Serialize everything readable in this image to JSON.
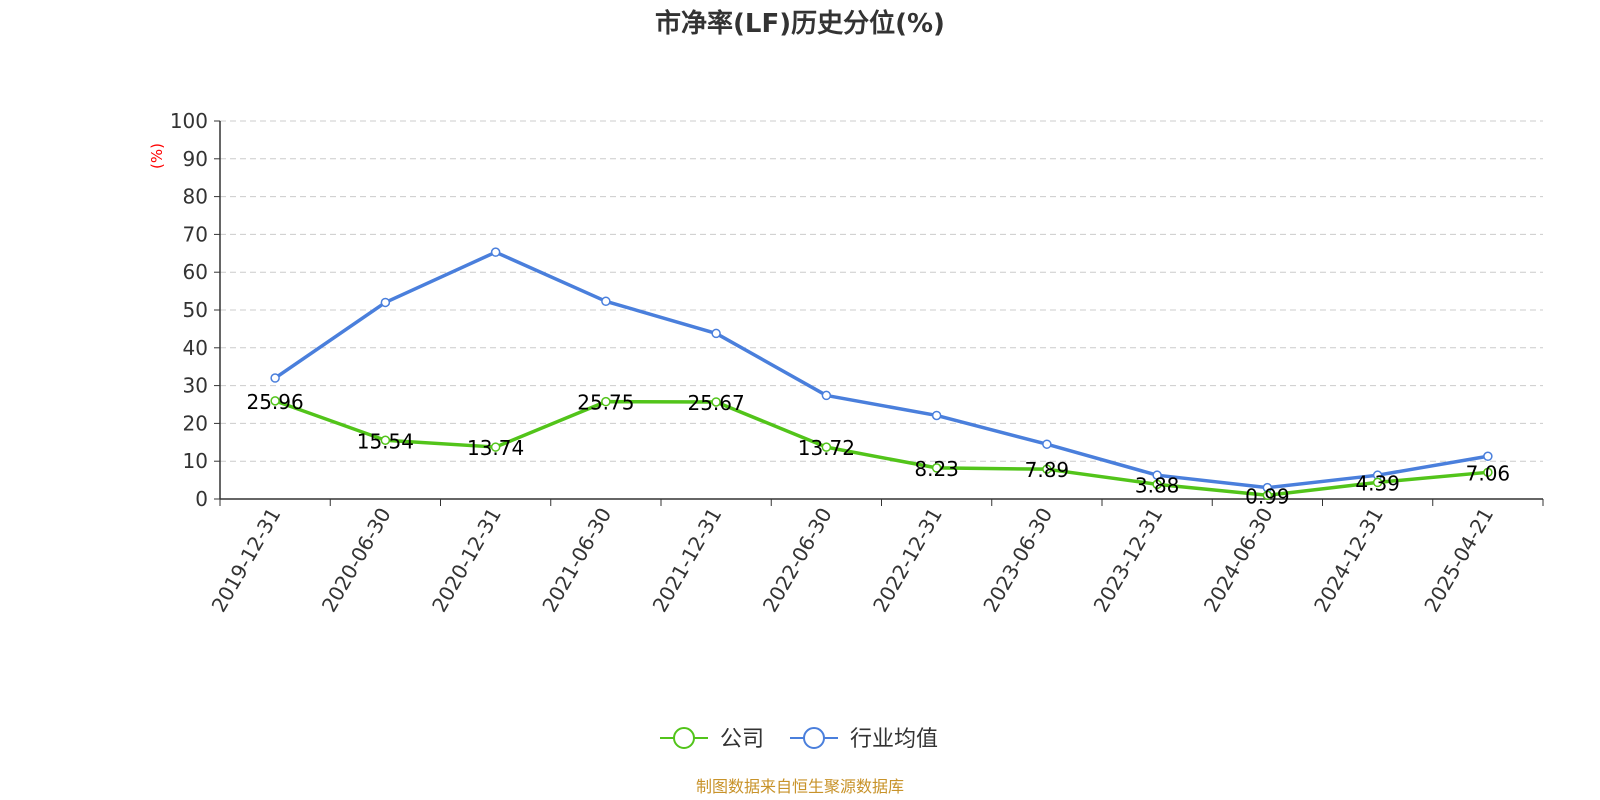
{
  "chart_data": {
    "type": "line",
    "title": "市净率(LF)历史分位(%)",
    "ylabel": "(%)",
    "xlabel": "",
    "ylim": [
      0,
      100
    ],
    "yticks": [
      0,
      10,
      20,
      30,
      40,
      50,
      60,
      70,
      80,
      90,
      100
    ],
    "categories": [
      "2019-12-31",
      "2020-06-30",
      "2020-12-31",
      "2021-06-30",
      "2021-12-31",
      "2022-06-30",
      "2022-12-31",
      "2023-06-30",
      "2023-12-31",
      "2024-06-30",
      "2024-12-31",
      "2025-04-21"
    ],
    "series": [
      {
        "name": "公司",
        "color": "#52c41a",
        "values": [
          25.96,
          15.54,
          13.74,
          25.75,
          25.67,
          13.72,
          8.23,
          7.89,
          3.88,
          0.99,
          4.39,
          7.06
        ],
        "labels": [
          "25.96",
          "15.54",
          "13.74",
          "25.75",
          "25.67",
          "13.72",
          "8.23",
          "7.89",
          "3.88",
          "0.99",
          "4.39",
          "7.06"
        ]
      },
      {
        "name": "行业均值",
        "color": "#4a7fdc",
        "values": [
          32.0,
          52.0,
          65.3,
          52.3,
          43.8,
          27.4,
          22.1,
          14.5,
          6.3,
          3.0,
          6.3,
          11.3
        ]
      }
    ],
    "grid": true,
    "legend_position": "bottom-center",
    "ylabel_color": "#ff0000",
    "source_text": "制图数据来自恒生聚源数据库",
    "source_color": "#c8932a"
  }
}
